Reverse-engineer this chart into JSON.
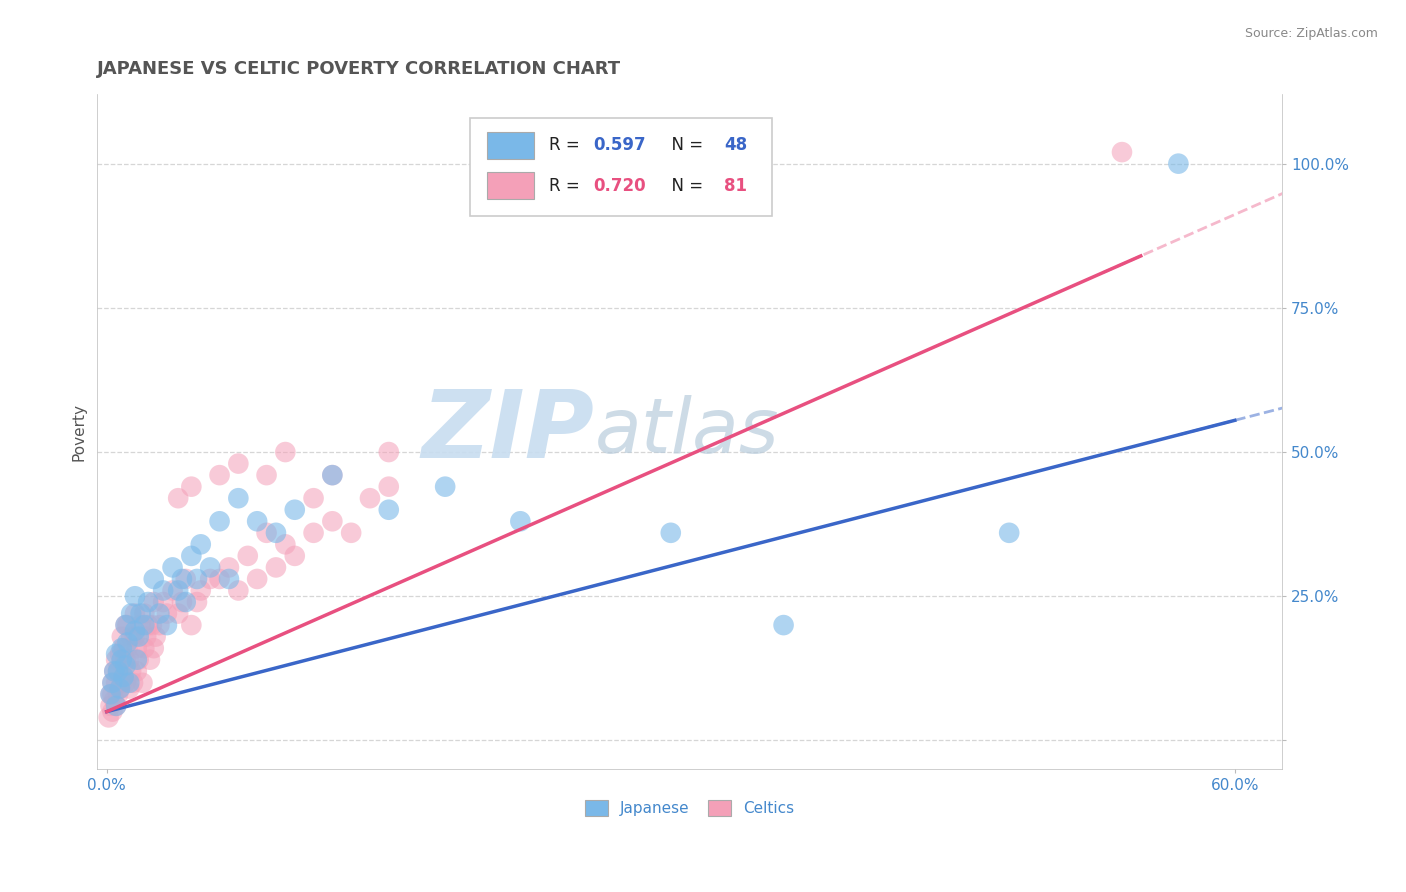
{
  "title": "JAPANESE VS CELTIC POVERTY CORRELATION CHART",
  "source": "Source: ZipAtlas.com",
  "ylabel": "Poverty",
  "xlim": [
    -0.005,
    0.625
  ],
  "ylim": [
    -0.05,
    1.12
  ],
  "yticks": [
    0.0,
    0.25,
    0.5,
    0.75,
    1.0
  ],
  "yticklabels": [
    "",
    "25.0%",
    "50.0%",
    "75.0%",
    "100.0%"
  ],
  "xtick_positions": [
    0.0,
    0.6
  ],
  "xticklabels": [
    "0.0%",
    "60.0%"
  ],
  "grid_color": "#cccccc",
  "background_color": "#ffffff",
  "japanese_color": "#7ab8e8",
  "celtics_color": "#f4a0b8",
  "japanese_line_color": "#3a66c8",
  "celtics_line_color": "#e85080",
  "watermark_zip_color": "#c8ddf0",
  "watermark_atlas_color": "#b8ccdc",
  "title_color": "#555555",
  "source_color": "#888888",
  "ylabel_color": "#555555",
  "tick_color_x": "#4488cc",
  "tick_color_y": "#4488cc",
  "japanese_line": {
    "x0": 0.0,
    "y0": 0.05,
    "x1": 0.6,
    "y1": 0.555
  },
  "celtics_line": {
    "x0": 0.0,
    "y0": 0.05,
    "x1": 0.55,
    "y1": 0.84
  },
  "japanese_scatter_x": [
    0.002,
    0.003,
    0.004,
    0.005,
    0.005,
    0.006,
    0.007,
    0.008,
    0.008,
    0.009,
    0.01,
    0.01,
    0.011,
    0.012,
    0.013,
    0.015,
    0.015,
    0.016,
    0.017,
    0.018,
    0.02,
    0.022,
    0.025,
    0.028,
    0.03,
    0.032,
    0.035,
    0.038,
    0.04,
    0.042,
    0.045,
    0.048,
    0.05,
    0.055,
    0.06,
    0.065,
    0.07,
    0.08,
    0.09,
    0.1,
    0.12,
    0.15,
    0.18,
    0.22,
    0.3,
    0.36,
    0.48,
    0.57
  ],
  "japanese_scatter_y": [
    0.08,
    0.1,
    0.12,
    0.06,
    0.15,
    0.12,
    0.09,
    0.14,
    0.16,
    0.11,
    0.13,
    0.2,
    0.17,
    0.1,
    0.22,
    0.19,
    0.25,
    0.14,
    0.18,
    0.22,
    0.2,
    0.24,
    0.28,
    0.22,
    0.26,
    0.2,
    0.3,
    0.26,
    0.28,
    0.24,
    0.32,
    0.28,
    0.34,
    0.3,
    0.38,
    0.28,
    0.42,
    0.38,
    0.36,
    0.4,
    0.46,
    0.4,
    0.44,
    0.38,
    0.36,
    0.2,
    0.36,
    1.0
  ],
  "celtics_scatter_x": [
    0.001,
    0.002,
    0.002,
    0.003,
    0.003,
    0.003,
    0.004,
    0.004,
    0.005,
    0.005,
    0.005,
    0.006,
    0.006,
    0.007,
    0.007,
    0.008,
    0.008,
    0.008,
    0.009,
    0.009,
    0.01,
    0.01,
    0.01,
    0.011,
    0.011,
    0.012,
    0.012,
    0.013,
    0.013,
    0.014,
    0.015,
    0.015,
    0.016,
    0.016,
    0.017,
    0.018,
    0.019,
    0.02,
    0.02,
    0.021,
    0.022,
    0.023,
    0.024,
    0.025,
    0.025,
    0.026,
    0.028,
    0.03,
    0.032,
    0.035,
    0.038,
    0.04,
    0.042,
    0.045,
    0.048,
    0.05,
    0.055,
    0.06,
    0.065,
    0.07,
    0.075,
    0.08,
    0.085,
    0.09,
    0.095,
    0.1,
    0.11,
    0.12,
    0.13,
    0.14,
    0.15,
    0.06,
    0.045,
    0.038,
    0.07,
    0.085,
    0.095,
    0.11,
    0.12,
    0.15,
    0.54
  ],
  "celtics_scatter_y": [
    0.04,
    0.06,
    0.08,
    0.05,
    0.08,
    0.1,
    0.07,
    0.12,
    0.06,
    0.1,
    0.14,
    0.08,
    0.12,
    0.09,
    0.15,
    0.1,
    0.14,
    0.18,
    0.11,
    0.16,
    0.1,
    0.14,
    0.2,
    0.16,
    0.2,
    0.09,
    0.14,
    0.12,
    0.18,
    0.1,
    0.18,
    0.22,
    0.12,
    0.16,
    0.14,
    0.2,
    0.1,
    0.16,
    0.22,
    0.18,
    0.2,
    0.14,
    0.2,
    0.16,
    0.24,
    0.18,
    0.2,
    0.24,
    0.22,
    0.26,
    0.22,
    0.24,
    0.28,
    0.2,
    0.24,
    0.26,
    0.28,
    0.28,
    0.3,
    0.26,
    0.32,
    0.28,
    0.36,
    0.3,
    0.34,
    0.32,
    0.36,
    0.38,
    0.36,
    0.42,
    0.44,
    0.46,
    0.44,
    0.42,
    0.48,
    0.46,
    0.5,
    0.42,
    0.46,
    0.5,
    1.02
  ]
}
